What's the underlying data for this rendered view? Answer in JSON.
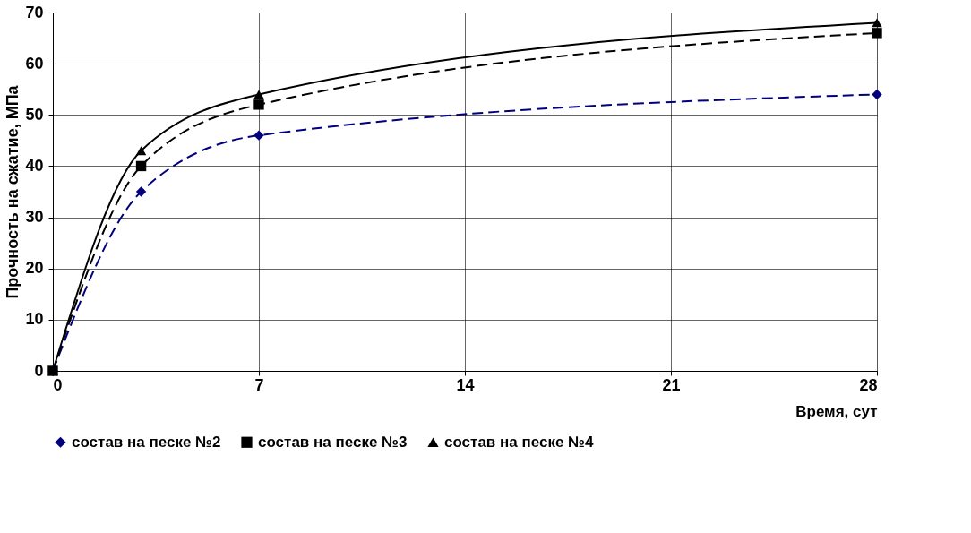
{
  "chart_data": {
    "type": "line",
    "xlabel": "Время, сут",
    "ylabel": "Прочность на сжатие, МПа",
    "x": [
      0,
      3,
      7,
      28
    ],
    "series": [
      {
        "name": "состав на песке №2",
        "color": "#00007f",
        "values": [
          0,
          35,
          46,
          54
        ],
        "marker": "diamond",
        "line_style": "dashed"
      },
      {
        "name": "состав на песке №3",
        "color": "#000000",
        "values": [
          0,
          40,
          52,
          66
        ],
        "marker": "square",
        "line_style": "dashed"
      },
      {
        "name": "состав на песке №4",
        "color": "#000000",
        "values": [
          0,
          43,
          54,
          68
        ],
        "marker": "triangle",
        "line_style": "solid"
      }
    ],
    "xlim": [
      0,
      28
    ],
    "xticks": [
      0,
      7,
      14,
      21,
      28
    ],
    "ylim": [
      0,
      70
    ],
    "yticks": [
      0,
      10,
      20,
      30,
      40,
      50,
      60,
      70
    ],
    "grid": true,
    "legend": "bottom"
  }
}
